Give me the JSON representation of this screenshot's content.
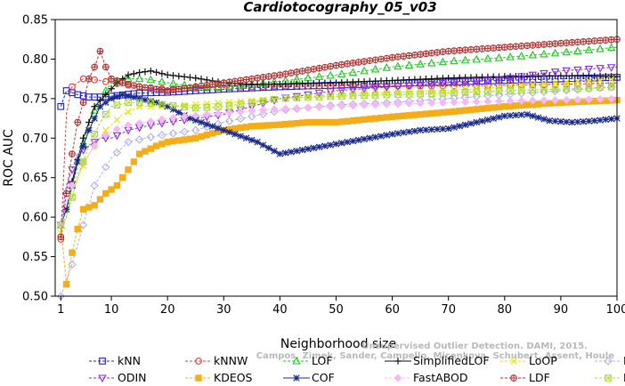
{
  "chart_data": {
    "type": "line",
    "title": "Cardiotocography_05_v03",
    "xlabel": "Neighborhood size",
    "ylabel": "ROC AUC",
    "xlim": [
      0,
      100
    ],
    "ylim": [
      0.5,
      0.85
    ],
    "xticks": [
      1,
      10,
      20,
      30,
      40,
      50,
      60,
      70,
      80,
      90,
      100
    ],
    "yticks": [
      0.5,
      0.55,
      0.6,
      0.65,
      0.7,
      0.75,
      0.8,
      0.85
    ],
    "ytick_labels": [
      "0.50",
      "0.55",
      "0.60",
      "0.65",
      "0.70",
      "0.75",
      "0.80",
      "0.85"
    ],
    "grid": false,
    "legend_position": "bottom",
    "watermark": [
      "Unsupervised Outlier Detection. DAMI, 2015.",
      "Campos, Zimek, Sander, Campello, Micenkova, Schubert, Assent, Houle"
    ],
    "series": [
      {
        "name": "kNN",
        "color": "#1c1cd8",
        "marker": "square",
        "line": "dashed",
        "points": [
          [
            1,
            0.74
          ],
          [
            2,
            0.76
          ],
          [
            4,
            0.755
          ],
          [
            6,
            0.752
          ],
          [
            8,
            0.752
          ],
          [
            10,
            0.753
          ],
          [
            15,
            0.757
          ],
          [
            20,
            0.758
          ],
          [
            30,
            0.762
          ],
          [
            40,
            0.765
          ],
          [
            50,
            0.767
          ],
          [
            60,
            0.769
          ],
          [
            70,
            0.771
          ],
          [
            80,
            0.773
          ],
          [
            90,
            0.775
          ],
          [
            100,
            0.777
          ]
        ]
      },
      {
        "name": "kNNW",
        "color": "#d84040",
        "marker": "circle",
        "line": "dashed",
        "points": [
          [
            1,
            0.572
          ],
          [
            2,
            0.73
          ],
          [
            3,
            0.765
          ],
          [
            5,
            0.775
          ],
          [
            8,
            0.773
          ],
          [
            10,
            0.77
          ],
          [
            15,
            0.765
          ],
          [
            20,
            0.762
          ],
          [
            30,
            0.764
          ],
          [
            40,
            0.766
          ],
          [
            50,
            0.766
          ],
          [
            60,
            0.766
          ],
          [
            70,
            0.766
          ],
          [
            80,
            0.767
          ],
          [
            90,
            0.768
          ],
          [
            100,
            0.77
          ]
        ]
      },
      {
        "name": "LOF",
        "color": "#22c422",
        "marker": "triangle-up",
        "line": "dashed",
        "points": [
          [
            1,
            0.59
          ],
          [
            2,
            0.6
          ],
          [
            3,
            0.64
          ],
          [
            4,
            0.665
          ],
          [
            6,
            0.72
          ],
          [
            8,
            0.75
          ],
          [
            10,
            0.77
          ],
          [
            13,
            0.775
          ],
          [
            16,
            0.775
          ],
          [
            20,
            0.77
          ],
          [
            25,
            0.765
          ],
          [
            30,
            0.765
          ],
          [
            35,
            0.768
          ],
          [
            40,
            0.772
          ],
          [
            50,
            0.78
          ],
          [
            60,
            0.79
          ],
          [
            70,
            0.797
          ],
          [
            80,
            0.802
          ],
          [
            90,
            0.808
          ],
          [
            100,
            0.815
          ]
        ]
      },
      {
        "name": "SimplifiedLOF",
        "color": "#111111",
        "marker": "plus",
        "line": "solid",
        "points": [
          [
            1,
            0.59
          ],
          [
            2,
            0.61
          ],
          [
            3,
            0.645
          ],
          [
            5,
            0.7
          ],
          [
            7,
            0.74
          ],
          [
            9,
            0.755
          ],
          [
            11,
            0.77
          ],
          [
            13,
            0.78
          ],
          [
            15,
            0.783
          ],
          [
            17,
            0.785
          ],
          [
            20,
            0.78
          ],
          [
            25,
            0.776
          ],
          [
            30,
            0.77
          ],
          [
            35,
            0.768
          ],
          [
            40,
            0.768
          ],
          [
            50,
            0.77
          ],
          [
            60,
            0.773
          ],
          [
            70,
            0.776
          ],
          [
            80,
            0.778
          ],
          [
            90,
            0.779
          ],
          [
            100,
            0.778
          ]
        ]
      },
      {
        "name": "LoOP",
        "color": "#e8e800",
        "marker": "cross",
        "line": "dashed",
        "points": [
          [
            1,
            0.58
          ],
          [
            2,
            0.6
          ],
          [
            4,
            0.65
          ],
          [
            6,
            0.68
          ],
          [
            9,
            0.71
          ],
          [
            12,
            0.73
          ],
          [
            15,
            0.74
          ],
          [
            20,
            0.74
          ],
          [
            30,
            0.745
          ],
          [
            40,
            0.75
          ],
          [
            50,
            0.755
          ],
          [
            60,
            0.758
          ],
          [
            70,
            0.76
          ],
          [
            80,
            0.765
          ],
          [
            90,
            0.77
          ],
          [
            100,
            0.775
          ]
        ]
      },
      {
        "name": "LDOF",
        "color": "#b0b0e8",
        "marker": "diamond",
        "line": "dashed",
        "points": [
          [
            1,
            0.5
          ],
          [
            3,
            0.54
          ],
          [
            5,
            0.59
          ],
          [
            7,
            0.64
          ],
          [
            10,
            0.675
          ],
          [
            13,
            0.695
          ],
          [
            16,
            0.7
          ],
          [
            20,
            0.705
          ],
          [
            25,
            0.71
          ],
          [
            30,
            0.72
          ],
          [
            40,
            0.735
          ],
          [
            50,
            0.742
          ],
          [
            60,
            0.745
          ],
          [
            70,
            0.75
          ],
          [
            80,
            0.755
          ],
          [
            90,
            0.76
          ],
          [
            100,
            0.765
          ]
        ]
      },
      {
        "name": "ODIN",
        "color": "#8a2be2",
        "marker": "triangle-down",
        "line": "dashed",
        "points": [
          [
            1,
            0.59
          ],
          [
            2,
            0.64
          ],
          [
            4,
            0.68
          ],
          [
            6,
            0.69
          ],
          [
            8,
            0.7
          ],
          [
            10,
            0.7
          ],
          [
            13,
            0.71
          ],
          [
            16,
            0.715
          ],
          [
            20,
            0.72
          ],
          [
            25,
            0.725
          ],
          [
            30,
            0.73
          ],
          [
            40,
            0.75
          ],
          [
            50,
            0.76
          ],
          [
            60,
            0.765
          ],
          [
            70,
            0.77
          ],
          [
            80,
            0.775
          ],
          [
            90,
            0.785
          ],
          [
            100,
            0.79
          ]
        ]
      },
      {
        "name": "KDEOS",
        "color": "#f4ad1a",
        "marker": "square-filled",
        "line": "dashed",
        "points": [
          [
            1,
            0.59
          ],
          [
            2,
            0.515
          ],
          [
            3,
            0.555
          ],
          [
            4,
            0.585
          ],
          [
            5,
            0.61
          ],
          [
            7,
            0.615
          ],
          [
            9,
            0.63
          ],
          [
            11,
            0.64
          ],
          [
            13,
            0.66
          ],
          [
            15,
            0.68
          ],
          [
            18,
            0.69
          ],
          [
            20,
            0.695
          ],
          [
            25,
            0.7
          ],
          [
            30,
            0.71
          ],
          [
            35,
            0.715
          ],
          [
            40,
            0.717
          ],
          [
            45,
            0.72
          ],
          [
            50,
            0.72
          ],
          [
            60,
            0.727
          ],
          [
            70,
            0.733
          ],
          [
            80,
            0.74
          ],
          [
            90,
            0.745
          ],
          [
            100,
            0.748
          ]
        ]
      },
      {
        "name": "COF",
        "color": "#1a2a8c",
        "marker": "asterisk",
        "line": "solid",
        "points": [
          [
            1,
            0.59
          ],
          [
            2,
            0.61
          ],
          [
            4,
            0.67
          ],
          [
            6,
            0.71
          ],
          [
            8,
            0.74
          ],
          [
            10,
            0.75
          ],
          [
            12,
            0.755
          ],
          [
            15,
            0.75
          ],
          [
            18,
            0.745
          ],
          [
            20,
            0.74
          ],
          [
            24,
            0.725
          ],
          [
            28,
            0.715
          ],
          [
            32,
            0.705
          ],
          [
            36,
            0.695
          ],
          [
            40,
            0.68
          ],
          [
            44,
            0.685
          ],
          [
            48,
            0.69
          ],
          [
            52,
            0.695
          ],
          [
            56,
            0.7
          ],
          [
            60,
            0.705
          ],
          [
            65,
            0.71
          ],
          [
            70,
            0.712
          ],
          [
            75,
            0.72
          ],
          [
            80,
            0.728
          ],
          [
            84,
            0.73
          ],
          [
            88,
            0.722
          ],
          [
            92,
            0.72
          ],
          [
            96,
            0.722
          ],
          [
            100,
            0.725
          ]
        ]
      },
      {
        "name": "FastABOD",
        "color": "#f4b8f4",
        "marker": "diamond-filled",
        "line": "dashed",
        "points": [
          [
            1,
            0.59
          ],
          [
            3,
            0.64
          ],
          [
            5,
            0.67
          ],
          [
            8,
            0.7
          ],
          [
            12,
            0.715
          ],
          [
            16,
            0.72
          ],
          [
            20,
            0.725
          ],
          [
            30,
            0.732
          ],
          [
            40,
            0.737
          ],
          [
            50,
            0.74
          ],
          [
            60,
            0.743
          ],
          [
            70,
            0.745
          ],
          [
            80,
            0.747
          ],
          [
            90,
            0.748
          ],
          [
            100,
            0.75
          ]
        ]
      },
      {
        "name": "LDF",
        "color": "#b03030",
        "marker": "circle-plus",
        "line": "dashed",
        "points": [
          [
            1,
            0.575
          ],
          [
            2,
            0.63
          ],
          [
            3,
            0.68
          ],
          [
            4,
            0.72
          ],
          [
            5,
            0.745
          ],
          [
            6,
            0.775
          ],
          [
            7,
            0.79
          ],
          [
            8,
            0.81
          ],
          [
            9,
            0.79
          ],
          [
            10,
            0.775
          ],
          [
            12,
            0.77
          ],
          [
            15,
            0.765
          ],
          [
            20,
            0.76
          ],
          [
            25,
            0.765
          ],
          [
            30,
            0.77
          ],
          [
            40,
            0.78
          ],
          [
            50,
            0.792
          ],
          [
            60,
            0.802
          ],
          [
            70,
            0.81
          ],
          [
            80,
            0.815
          ],
          [
            90,
            0.82
          ],
          [
            100,
            0.825
          ]
        ]
      },
      {
        "name": "INFLO",
        "color": "#a8d838",
        "marker": "star-box",
        "line": "dashed",
        "points": [
          [
            1,
            0.59
          ],
          [
            2,
            0.6
          ],
          [
            4,
            0.65
          ],
          [
            6,
            0.69
          ],
          [
            8,
            0.72
          ],
          [
            10,
            0.74
          ],
          [
            13,
            0.745
          ],
          [
            16,
            0.745
          ],
          [
            20,
            0.742
          ],
          [
            25,
            0.738
          ],
          [
            30,
            0.74
          ],
          [
            40,
            0.75
          ],
          [
            50,
            0.753
          ],
          [
            60,
            0.755
          ],
          [
            70,
            0.757
          ],
          [
            80,
            0.76
          ],
          [
            90,
            0.762
          ],
          [
            100,
            0.765
          ]
        ]
      }
    ]
  }
}
